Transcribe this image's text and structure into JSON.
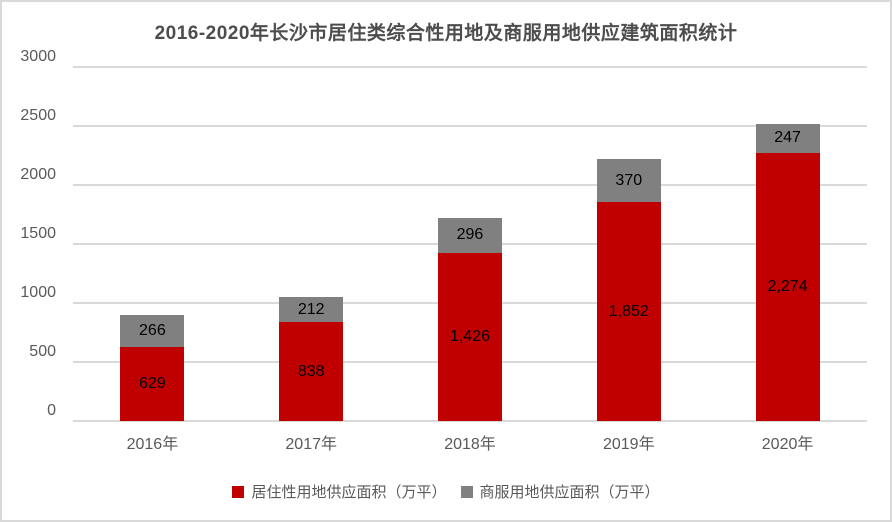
{
  "title": "2016-2020年长沙市居住类综合性用地及商服用地供应建筑面积统计",
  "colors": {
    "residential_red": "#c00000",
    "commercial_gray": "#808080",
    "gridline": "#d9d9d9",
    "axis_text": "#595959",
    "data_label": "#000000",
    "frame_border": "#d9d9d9",
    "background": "#ffffff"
  },
  "chart_data": {
    "type": "bar",
    "stacked": true,
    "title": "2016-2020年长沙市居住类综合性用地及商服用地供应建筑面积统计",
    "categories": [
      "2016年",
      "2017年",
      "2018年",
      "2019年",
      "2020年"
    ],
    "series": [
      {
        "name": "居住性用地供应面积（万平）",
        "color": "#c00000",
        "values": [
          629,
          838,
          1426,
          1852,
          2274
        ],
        "labels": [
          "629",
          "838",
          "1,426",
          "1,852",
          "2,274"
        ]
      },
      {
        "name": "商服用地供应面积（万平）",
        "color": "#808080",
        "values": [
          266,
          212,
          296,
          370,
          247
        ],
        "labels": [
          "266",
          "212",
          "296",
          "370",
          "247"
        ]
      }
    ],
    "xlabel": "",
    "ylabel": "",
    "ylim": [
      0,
      3000
    ],
    "yticks": [
      0,
      500,
      1000,
      1500,
      2000,
      2500,
      3000
    ],
    "ytick_labels": [
      "0",
      "500",
      "1000",
      "1500",
      "2000",
      "2500",
      "3000"
    ],
    "grid": true,
    "legend_position": "bottom",
    "data_label_position": "center"
  }
}
